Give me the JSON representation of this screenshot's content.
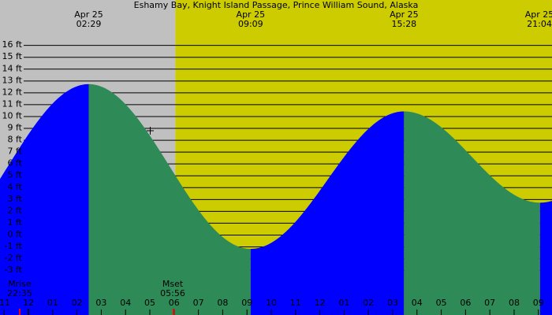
{
  "chart_data": {
    "type": "tide",
    "title": "Eshamy Bay, Knight Island Passage, Prince William Sound, Alaska",
    "extremes": [
      {
        "date": "Apr 25",
        "time": "02:29",
        "height": 12.7
      },
      {
        "date": "Apr 25",
        "time": "09:09",
        "height": -1.2
      },
      {
        "date": "Apr 25",
        "time": "15:28",
        "height": 10.4
      },
      {
        "date": "Apr 25",
        "time": "21:04",
        "height": 2.7
      }
    ],
    "sunrise_hour": 6.05,
    "moon_events": [
      {
        "label": "Mrise",
        "time": "22:35"
      },
      {
        "label": "Mset",
        "time": "05:56"
      }
    ],
    "xlim": [
      -1.17,
      21.56
    ],
    "xticks": [
      {
        "value": -1,
        "label": "11"
      },
      {
        "value": 0,
        "label": "12"
      },
      {
        "value": 1,
        "label": "01"
      },
      {
        "value": 2,
        "label": "02"
      },
      {
        "value": 3,
        "label": "03"
      },
      {
        "value": 4,
        "label": "04"
      },
      {
        "value": 5,
        "label": "05"
      },
      {
        "value": 6,
        "label": "06"
      },
      {
        "value": 7,
        "label": "07"
      },
      {
        "value": 8,
        "label": "08"
      },
      {
        "value": 9,
        "label": "09"
      },
      {
        "value": 10,
        "label": "10"
      },
      {
        "value": 11,
        "label": "11"
      },
      {
        "value": 12,
        "label": "12"
      },
      {
        "value": 13,
        "label": "01"
      },
      {
        "value": 14,
        "label": "02"
      },
      {
        "value": 15,
        "label": "03"
      },
      {
        "value": 16,
        "label": "04"
      },
      {
        "value": 17,
        "label": "05"
      },
      {
        "value": 18,
        "label": "06"
      },
      {
        "value": 19,
        "label": "07"
      },
      {
        "value": 20,
        "label": "08"
      },
      {
        "value": 21,
        "label": "09"
      }
    ],
    "ylim": [
      -6.78,
      19.8
    ],
    "yticks": [
      {
        "value": 16,
        "label": "16 ft"
      },
      {
        "value": 15,
        "label": "15 ft"
      },
      {
        "value": 14,
        "label": "14 ft"
      },
      {
        "value": 13,
        "label": "13 ft"
      },
      {
        "value": 12,
        "label": "12 ft"
      },
      {
        "value": 11,
        "label": "11 ft"
      },
      {
        "value": 10,
        "label": "10 ft"
      },
      {
        "value": 9,
        "label": "9 ft"
      },
      {
        "value": 8,
        "label": "8 ft"
      },
      {
        "value": 7,
        "label": "7 ft"
      },
      {
        "value": 6,
        "label": "6 ft"
      },
      {
        "value": 5,
        "label": "5 ft"
      },
      {
        "value": 4,
        "label": "4 ft"
      },
      {
        "value": 3,
        "label": "3 ft"
      },
      {
        "value": 2,
        "label": "2 ft"
      },
      {
        "value": 1,
        "label": "1 ft"
      },
      {
        "value": 0,
        "label": "0 ft"
      },
      {
        "value": -1,
        "label": "-1 ft"
      },
      {
        "value": -2,
        "label": "-2 ft"
      },
      {
        "value": -3,
        "label": "-3 ft"
      }
    ],
    "grid": true,
    "night_color": "#c0c0c0",
    "day_color": "#cccc00",
    "rising_color": "#0000ff",
    "falling_color": "#2e8b57"
  }
}
